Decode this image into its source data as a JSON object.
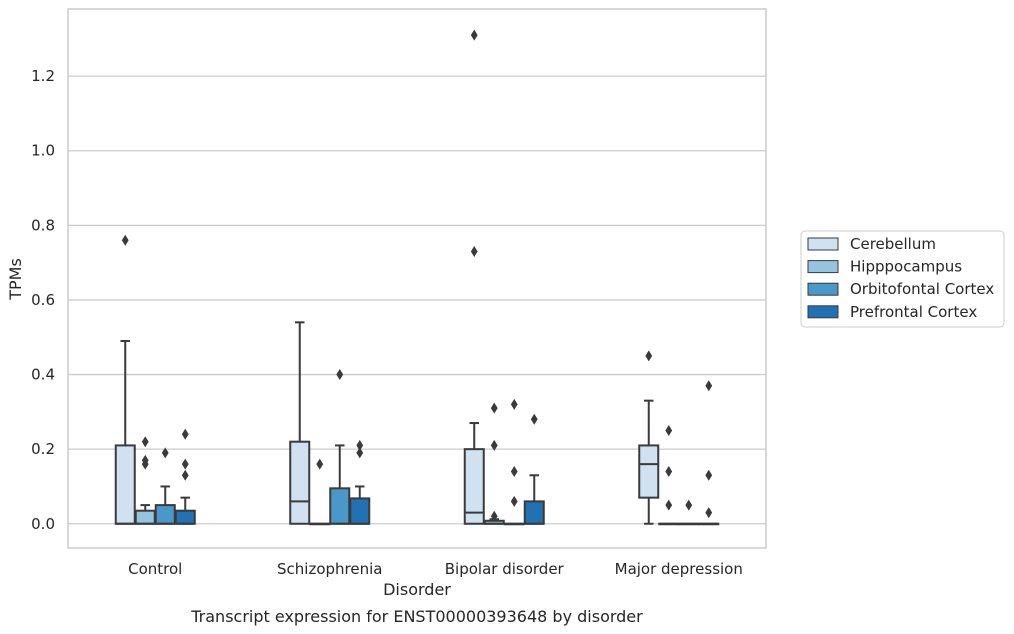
{
  "chart_data": {
    "type": "box",
    "title": "Transcript expression for ENST00000393648 by disorder",
    "xlabel": "Disorder",
    "ylabel": "TPMs",
    "ylim": [
      -0.065,
      1.38
    ],
    "yticks": [
      "0.0",
      "0.2",
      "0.4",
      "0.6",
      "0.8",
      "1.0",
      "1.2"
    ],
    "grid": "horizontal",
    "legend_position": "right",
    "categories": [
      "Control",
      "Schizophrenia",
      "Bipolar disorder",
      "Major depression"
    ],
    "series": [
      {
        "name": "Cerebellum",
        "color": "#d0e1f2",
        "boxes": [
          {
            "q1": 0.0,
            "median": 0.0,
            "q3": 0.21,
            "whisker_low": 0.0,
            "whisker_high": 0.49,
            "outliers": [
              0.76
            ]
          },
          {
            "q1": 0.0,
            "median": 0.06,
            "q3": 0.22,
            "whisker_low": 0.0,
            "whisker_high": 0.54,
            "outliers": []
          },
          {
            "q1": 0.0,
            "median": 0.03,
            "q3": 0.2,
            "whisker_low": 0.0,
            "whisker_high": 0.27,
            "outliers": [
              0.73,
              1.31
            ]
          },
          {
            "q1": 0.07,
            "median": 0.16,
            "q3": 0.21,
            "whisker_low": 0.0,
            "whisker_high": 0.33,
            "outliers": [
              0.45
            ]
          }
        ]
      },
      {
        "name": "Hipppocampus",
        "color": "#94c4df",
        "boxes": [
          {
            "q1": 0.0,
            "median": 0.0,
            "q3": 0.035,
            "whisker_low": 0.0,
            "whisker_high": 0.05,
            "outliers": [
              0.16,
              0.17,
              0.22
            ]
          },
          {
            "q1": 0.0,
            "median": 0.0,
            "q3": 0.0,
            "whisker_low": 0.0,
            "whisker_high": 0.0,
            "outliers": [
              0.16
            ]
          },
          {
            "q1": 0.0,
            "median": 0.0,
            "q3": 0.008,
            "whisker_low": 0.0,
            "whisker_high": 0.012,
            "outliers": [
              0.02,
              0.21,
              0.31
            ]
          },
          {
            "q1": 0.0,
            "median": 0.0,
            "q3": 0.0,
            "whisker_low": 0.0,
            "whisker_high": 0.0,
            "outliers": [
              0.05,
              0.14,
              0.25
            ]
          }
        ]
      },
      {
        "name": "Orbitofontal Cortex",
        "color": "#4a98c9",
        "boxes": [
          {
            "q1": 0.0,
            "median": 0.0,
            "q3": 0.05,
            "whisker_low": 0.0,
            "whisker_high": 0.1,
            "outliers": [
              0.19
            ]
          },
          {
            "q1": 0.0,
            "median": 0.0,
            "q3": 0.095,
            "whisker_low": 0.0,
            "whisker_high": 0.21,
            "outliers": [
              0.4
            ]
          },
          {
            "q1": 0.0,
            "median": 0.0,
            "q3": 0.0,
            "whisker_low": 0.0,
            "whisker_high": 0.0,
            "outliers": [
              0.06,
              0.14,
              0.32
            ]
          },
          {
            "q1": 0.0,
            "median": 0.0,
            "q3": 0.0,
            "whisker_low": 0.0,
            "whisker_high": 0.0,
            "outliers": [
              0.05
            ]
          }
        ]
      },
      {
        "name": "Prefrontal Cortex",
        "color": "#2171b5",
        "boxes": [
          {
            "q1": 0.0,
            "median": 0.0,
            "q3": 0.035,
            "whisker_low": 0.0,
            "whisker_high": 0.07,
            "outliers": [
              0.13,
              0.16,
              0.24
            ]
          },
          {
            "q1": 0.0,
            "median": 0.0,
            "q3": 0.068,
            "whisker_low": 0.0,
            "whisker_high": 0.1,
            "outliers": [
              0.19,
              0.21
            ]
          },
          {
            "q1": 0.0,
            "median": 0.0,
            "q3": 0.06,
            "whisker_low": 0.0,
            "whisker_high": 0.13,
            "outliers": [
              0.28
            ]
          },
          {
            "q1": 0.0,
            "median": 0.0,
            "q3": 0.0,
            "whisker_low": 0.0,
            "whisker_high": 0.0,
            "outliers": [
              0.03,
              0.13,
              0.37
            ]
          }
        ]
      }
    ]
  }
}
